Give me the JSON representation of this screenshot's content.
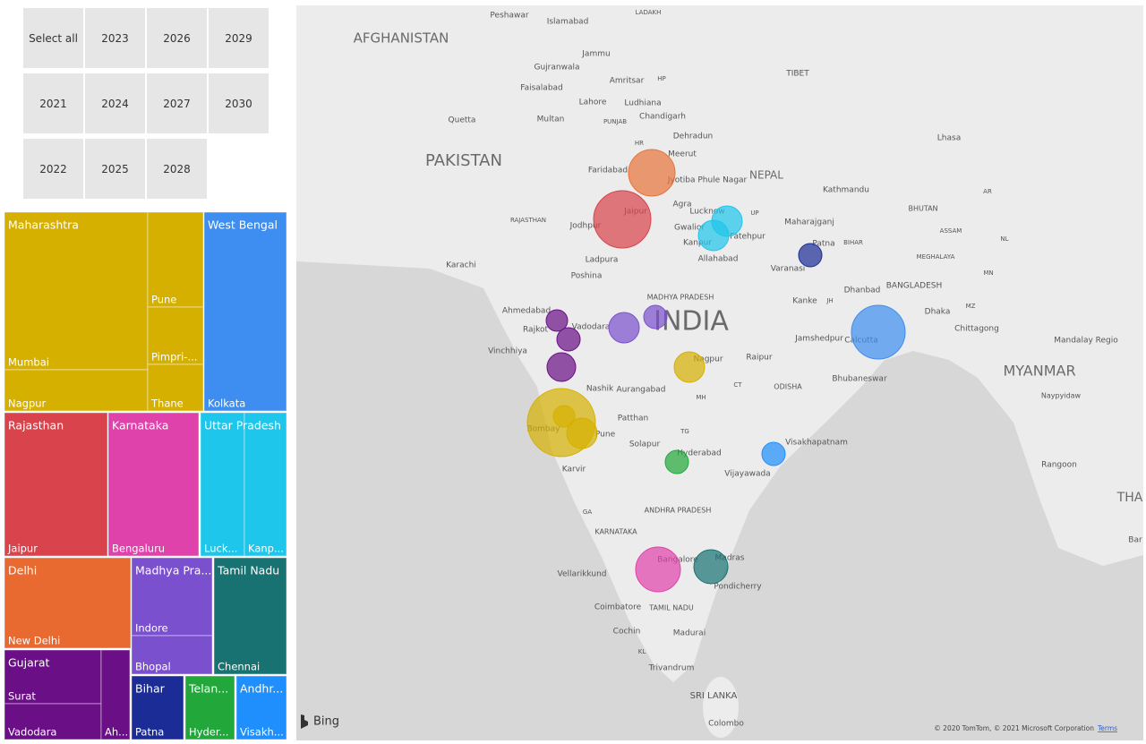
{
  "slicer": {
    "items": [
      "Select all",
      "2023",
      "2026",
      "2029",
      "2021",
      "2024",
      "2027",
      "2030",
      "2022",
      "2025",
      "2028"
    ]
  },
  "treemap": {
    "groups": [
      {
        "name": "Maharashtra",
        "color": "#d6b000",
        "cities": [
          "Mumbai",
          "Nagpur",
          "Pune",
          "Pimpri-...",
          "Thane"
        ]
      },
      {
        "name": "West Bengal",
        "color": "#3d8ef0",
        "cities": [
          "Kolkata"
        ]
      },
      {
        "name": "Rajasthan",
        "color": "#d8434c",
        "cities": [
          "Jaipur"
        ]
      },
      {
        "name": "Karnataka",
        "color": "#df42aa",
        "cities": [
          "Bengaluru"
        ]
      },
      {
        "name": "Uttar Pradesh",
        "color": "#1ec6ec",
        "cities": [
          "Luck...",
          "Kanp..."
        ]
      },
      {
        "name": "Delhi",
        "color": "#e86a30",
        "cities": [
          "New Delhi"
        ]
      },
      {
        "name": "Madhya Pra...",
        "color": "#7b50cf",
        "cities": [
          "Indore",
          "Bhopal"
        ]
      },
      {
        "name": "Tamil Nadu",
        "color": "#187272",
        "cities": [
          "Chennai"
        ]
      },
      {
        "name": "Gujarat",
        "color": "#6a0f86",
        "cities": [
          "Surat",
          "Vadodara",
          "Ah..."
        ]
      },
      {
        "name": "Bihar",
        "color": "#1b2c96",
        "cities": [
          "Patna"
        ]
      },
      {
        "name": "Telan...",
        "color": "#22a83a",
        "cities": [
          "Hyder..."
        ]
      },
      {
        "name": "Andhr...",
        "color": "#1e8ffc",
        "cities": [
          "Visakh..."
        ]
      }
    ]
  },
  "map": {
    "labels": [
      "AFGHANISTAN",
      "PAKISTAN",
      "INDIA",
      "TIBET",
      "NEPAL",
      "BHUTAN",
      "BANGLADESH",
      "MYANMAR",
      "SRI LANKA",
      "THA",
      "Peshawar",
      "Islamabad",
      "Jammu",
      "Gujranwala",
      "Amritsar",
      "Faisalabad",
      "Lahore",
      "Ludhiana",
      "Quetta",
      "Multan",
      "Chandigarh",
      "Dehradun",
      "Meerut",
      "Lhasa",
      "Faridabad",
      "Jyotiba Phule Nagar",
      "Kathmandu",
      "Jaipur",
      "Agra",
      "Lucknow",
      "Jodhpur",
      "Gwalior",
      "Kanpur",
      "Fatehpur",
      "Maharajganj",
      "Allahabad",
      "Varanasi",
      "Patna",
      "Karachi",
      "Ladpura",
      "Poshina",
      "MADHYA PRADESH",
      "Kanke",
      "Dhanbad",
      "Ahmedabad",
      "Vadodara",
      "Rajkot",
      "Jamshedpur",
      "Calcutta",
      "Chittagong",
      "Mandalay Regio",
      "Vinchhiya",
      "Nagpur",
      "Raipur",
      "Nashik",
      "Aurangabad",
      "ODISHA",
      "Bhubaneswar",
      "Naypyidaw",
      "Patthan",
      "Bombay",
      "Pune",
      "Solapur",
      "Hyderabad",
      "Visakhapatnam",
      "Karvir",
      "Vijayawada",
      "Rangoon",
      "ANDHRA PRADESH",
      "KARNATAKA",
      "Bangalore",
      "Madras",
      "Vellarikkund",
      "Pondicherry",
      "Coimbatore",
      "TAMIL NADU",
      "Cochin",
      "Madurai",
      "Trivandrum",
      "Colombo",
      "LADAKH",
      "HP",
      "HR",
      "PUNJAB",
      "RAJASTHAN",
      "UP",
      "BIHAR",
      "JH",
      "MH",
      "CT",
      "TG",
      "GA",
      "KL",
      "ASSAM",
      "MEGHALAYA",
      "NL",
      "MN",
      "MZ",
      "AR",
      "Dhaka",
      "Bar"
    ],
    "brand": "Bing",
    "attribution": "© 2020 TomTom, © 2021 Microsoft Corporation",
    "terms": "Terms"
  }
}
